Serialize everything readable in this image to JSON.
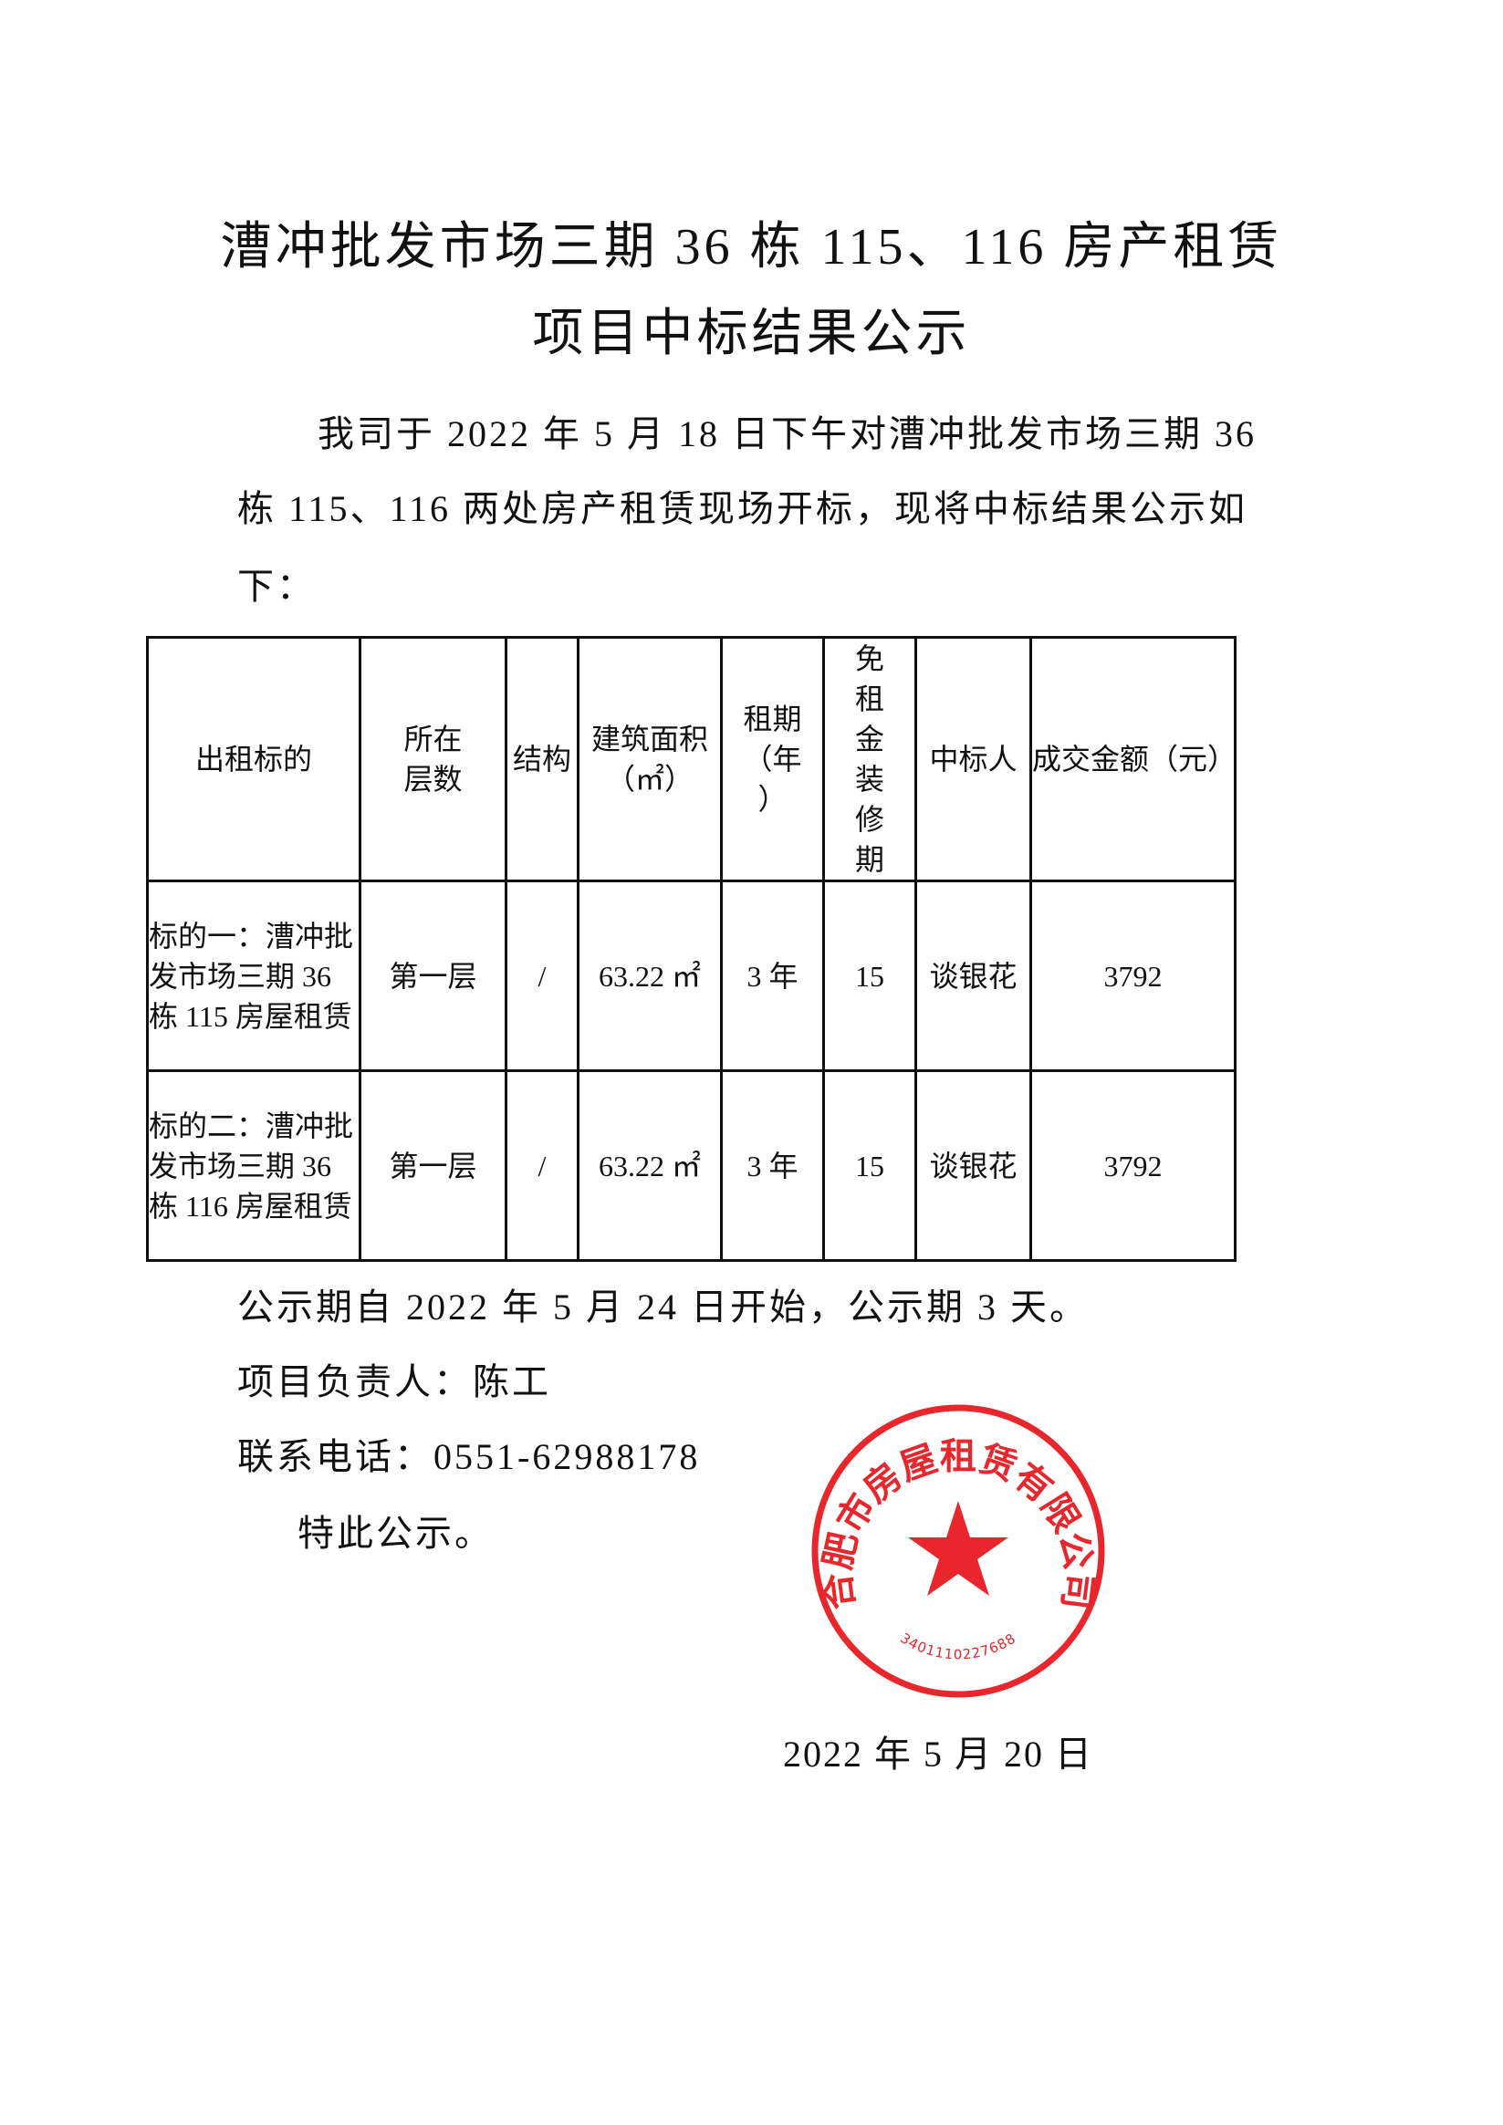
{
  "title": {
    "line1": "漕冲批发市场三期 36 栋 115、116 房产租赁",
    "line2": "项目中标结果公示"
  },
  "intro": {
    "line1": "我司于 2022 年 5 月 18 日下午对漕冲批发市场三期 36",
    "line2": "栋 115、116 两处房产租赁现场开标，现将中标结果公示如",
    "line3": "下："
  },
  "table": {
    "headers": [
      "出租标的",
      "所在层数",
      "结构",
      "建筑面积（㎡）",
      "租期（年）",
      "免租金装修期",
      "中标人",
      "成交金额（元）"
    ],
    "rows": [
      {
        "subject": "标的一：漕冲批发市场三期 36 栋 115 房屋租赁",
        "floor": "第一层",
        "structure": "/",
        "area": "63.22 ㎡",
        "term": "3 年",
        "free_period": "15",
        "winner": "谈银花",
        "amount": "3792"
      },
      {
        "subject": "标的二：漕冲批发市场三期 36 栋 116 房屋租赁",
        "floor": "第一层",
        "structure": "/",
        "area": "63.22 ㎡",
        "term": "3 年",
        "free_period": "15",
        "winner": "谈银花",
        "amount": "3792"
      }
    ]
  },
  "notice": {
    "period": "公示期自 2022 年 5 月 24 日开始，公示期 3 天。",
    "manager": "项目负责人：陈工",
    "phone": "联系电话：0551-62988178",
    "closing": "特此公示。"
  },
  "date": "2022 年 5 月 20 日",
  "stamp": {
    "company": "合肥市房屋租赁有限公司",
    "code": "3401110227688",
    "color": "#e8262b"
  }
}
